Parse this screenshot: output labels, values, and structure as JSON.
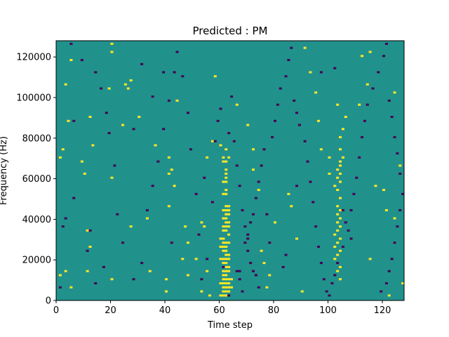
{
  "chart_data": {
    "type": "heatmap",
    "title": "Predicted : PM",
    "xlabel": "Time step",
    "ylabel": "Frequency (Hz)",
    "xlim": [
      0,
      128
    ],
    "ylim": [
      0,
      128000
    ],
    "n_time_steps": 128,
    "n_freq_bins": 128,
    "xticks": [
      0,
      20,
      40,
      60,
      80,
      100,
      120
    ],
    "xtick_labels": [
      "0",
      "20",
      "40",
      "60",
      "80",
      "100",
      "120"
    ],
    "yticks": [
      0,
      20000,
      40000,
      60000,
      80000,
      100000,
      120000
    ],
    "ytick_labels": [
      "0",
      "20000",
      "40000",
      "60000",
      "80000",
      "100000",
      "120000"
    ],
    "colormap": "viridis",
    "value_levels": [
      -1,
      0,
      1
    ],
    "background_value": 0,
    "colors": {
      "low": "#440154",
      "mid": "#21918c",
      "high": "#fde725"
    },
    "cells": [
      [
        60,
        2,
        1
      ],
      [
        61,
        2,
        1
      ],
      [
        62,
        2,
        1
      ],
      [
        61,
        4,
        1
      ],
      [
        62,
        4,
        1
      ],
      [
        63,
        4,
        1
      ],
      [
        61,
        6,
        1
      ],
      [
        62,
        6,
        1
      ],
      [
        63,
        6,
        1
      ],
      [
        64,
        6,
        1
      ],
      [
        60,
        8,
        1
      ],
      [
        61,
        8,
        1
      ],
      [
        62,
        8,
        1
      ],
      [
        63,
        8,
        1
      ],
      [
        61,
        10,
        1
      ],
      [
        62,
        10,
        1
      ],
      [
        63,
        10,
        1
      ],
      [
        64,
        10,
        1
      ],
      [
        61,
        12,
        1
      ],
      [
        62,
        12,
        1
      ],
      [
        61,
        14,
        1
      ],
      [
        62,
        14,
        1
      ],
      [
        63,
        14,
        1
      ],
      [
        62,
        16,
        1
      ],
      [
        63,
        16,
        1
      ],
      [
        61,
        18,
        1
      ],
      [
        62,
        18,
        1
      ],
      [
        60,
        20,
        1
      ],
      [
        61,
        20,
        1
      ],
      [
        62,
        20,
        1
      ],
      [
        63,
        20,
        1
      ],
      [
        62,
        22,
        1
      ],
      [
        63,
        22,
        1
      ],
      [
        61,
        24,
        1
      ],
      [
        62,
        24,
        1
      ],
      [
        60,
        26,
        1
      ],
      [
        61,
        26,
        1
      ],
      [
        62,
        26,
        1
      ],
      [
        61,
        28,
        1
      ],
      [
        62,
        28,
        1
      ],
      [
        63,
        28,
        1
      ],
      [
        60,
        30,
        1
      ],
      [
        61,
        30,
        1
      ],
      [
        63,
        32,
        1
      ],
      [
        61,
        34,
        1
      ],
      [
        62,
        34,
        1
      ],
      [
        61,
        36,
        1
      ],
      [
        62,
        36,
        1
      ],
      [
        63,
        36,
        1
      ],
      [
        62,
        38,
        1
      ],
      [
        63,
        38,
        1
      ],
      [
        61,
        40,
        1
      ],
      [
        62,
        40,
        1
      ],
      [
        62,
        42,
        1
      ],
      [
        63,
        42,
        1
      ],
      [
        61,
        44,
        1
      ],
      [
        62,
        44,
        1
      ],
      [
        63,
        44,
        1
      ],
      [
        62,
        46,
        1
      ],
      [
        63,
        46,
        1
      ],
      [
        61,
        52,
        1
      ],
      [
        62,
        52,
        1
      ],
      [
        62,
        54,
        1
      ],
      [
        61,
        58,
        1
      ],
      [
        62,
        58,
        1
      ],
      [
        62,
        60,
        1
      ],
      [
        62,
        62,
        1
      ],
      [
        62,
        64,
        1
      ],
      [
        61,
        68,
        1
      ],
      [
        62,
        68,
        1
      ],
      [
        61,
        70,
        1
      ],
      [
        63,
        70,
        1
      ],
      [
        62,
        74,
        1
      ],
      [
        104,
        10,
        1
      ],
      [
        103,
        14,
        1
      ],
      [
        104,
        16,
        1
      ],
      [
        102,
        20,
        1
      ],
      [
        103,
        22,
        1
      ],
      [
        104,
        24,
        1
      ],
      [
        102,
        26,
        1
      ],
      [
        103,
        28,
        1
      ],
      [
        104,
        30,
        1
      ],
      [
        102,
        32,
        1
      ],
      [
        103,
        34,
        1
      ],
      [
        104,
        36,
        1
      ],
      [
        103,
        38,
        1
      ],
      [
        104,
        40,
        1
      ],
      [
        103,
        42,
        1
      ],
      [
        104,
        44,
        1
      ],
      [
        103,
        46,
        1
      ],
      [
        104,
        50,
        1
      ],
      [
        103,
        54,
        1
      ],
      [
        102,
        56,
        1
      ],
      [
        104,
        58,
        1
      ],
      [
        103,
        60,
        1
      ],
      [
        104,
        62,
        1
      ],
      [
        103,
        64,
        1
      ],
      [
        104,
        66,
        1
      ],
      [
        104,
        68,
        1
      ],
      [
        105,
        70,
        1
      ],
      [
        104,
        74,
        1
      ],
      [
        104,
        80,
        1
      ],
      [
        105,
        84,
        1
      ],
      [
        1,
        12,
        1
      ],
      [
        5,
        6,
        1
      ],
      [
        3,
        14,
        1
      ],
      [
        1,
        70,
        1
      ],
      [
        2,
        74,
        1
      ],
      [
        4,
        88,
        1
      ],
      [
        3,
        106,
        1
      ],
      [
        5,
        118,
        1
      ],
      [
        10,
        62,
        1
      ],
      [
        11,
        34,
        1
      ],
      [
        12,
        26,
        1
      ],
      [
        11,
        14,
        1
      ],
      [
        13,
        76,
        1
      ],
      [
        12,
        90,
        1
      ],
      [
        19,
        104,
        1
      ],
      [
        20,
        122,
        1
      ],
      [
        20,
        126,
        1
      ],
      [
        20,
        10,
        1
      ],
      [
        20,
        60,
        1
      ],
      [
        24,
        86,
        1
      ],
      [
        25,
        106,
        1
      ],
      [
        27,
        108,
        1
      ],
      [
        26,
        104,
        1
      ],
      [
        27,
        36,
        1
      ],
      [
        30,
        90,
        1
      ],
      [
        33,
        40,
        1
      ],
      [
        34,
        14,
        1
      ],
      [
        40,
        4,
        1
      ],
      [
        40,
        10,
        1
      ],
      [
        41,
        46,
        1
      ],
      [
        41,
        62,
        1
      ],
      [
        42,
        64,
        1
      ],
      [
        44,
        98,
        1
      ],
      [
        46,
        20,
        1
      ],
      [
        47,
        36,
        1
      ],
      [
        48,
        28,
        1
      ],
      [
        48,
        12,
        1
      ],
      [
        53,
        4,
        1
      ],
      [
        53,
        38,
        1
      ],
      [
        54,
        36,
        1
      ],
      [
        55,
        14,
        1
      ],
      [
        56,
        2,
        1
      ],
      [
        55,
        70,
        1
      ],
      [
        57,
        78,
        1
      ],
      [
        58,
        110,
        1
      ],
      [
        60,
        76,
        1
      ],
      [
        66,
        96,
        1
      ],
      [
        70,
        86,
        1
      ],
      [
        72,
        74,
        1
      ],
      [
        72,
        64,
        1
      ],
      [
        74,
        54,
        1
      ],
      [
        75,
        24,
        1
      ],
      [
        76,
        18,
        1
      ],
      [
        78,
        12,
        1
      ],
      [
        77,
        6,
        1
      ],
      [
        80,
        38,
        1
      ],
      [
        85,
        52,
        1
      ],
      [
        86,
        46,
        1
      ],
      [
        88,
        30,
        1
      ],
      [
        90,
        4,
        1
      ],
      [
        91,
        124,
        1
      ],
      [
        93,
        112,
        1
      ],
      [
        95,
        102,
        1
      ],
      [
        96,
        88,
        1
      ],
      [
        100,
        62,
        1
      ],
      [
        103,
        96,
        1
      ],
      [
        106,
        90,
        1
      ],
      [
        111,
        96,
        1
      ],
      [
        112,
        120,
        1
      ],
      [
        114,
        106,
        1
      ],
      [
        115,
        122,
        1
      ],
      [
        115,
        20,
        1
      ],
      [
        117,
        56,
        1
      ],
      [
        120,
        54,
        1
      ],
      [
        121,
        44,
        1
      ],
      [
        122,
        2,
        1
      ],
      [
        124,
        40,
        1
      ],
      [
        126,
        66,
        1
      ],
      [
        127,
        8,
        1
      ],
      [
        124,
        102,
        1
      ],
      [
        41,
        70,
        1
      ],
      [
        100,
        70,
        1
      ],
      [
        97,
        74,
        1
      ],
      [
        51,
        20,
        1
      ],
      [
        36,
        76,
        1
      ],
      [
        43,
        56,
        1
      ],
      [
        9,
        68,
        1
      ],
      [
        1,
        6,
        -1
      ],
      [
        3,
        40,
        -1
      ],
      [
        6,
        50,
        -1
      ],
      [
        2,
        36,
        -1
      ],
      [
        5,
        126,
        -1
      ],
      [
        9,
        118,
        -1
      ],
      [
        14,
        112,
        -1
      ],
      [
        16,
        104,
        -1
      ],
      [
        18,
        92,
        -1
      ],
      [
        19,
        82,
        -1
      ],
      [
        21,
        66,
        -1
      ],
      [
        22,
        42,
        -1
      ],
      [
        24,
        28,
        -1
      ],
      [
        28,
        10,
        -1
      ],
      [
        31,
        18,
        -1
      ],
      [
        33,
        44,
        -1
      ],
      [
        35,
        56,
        -1
      ],
      [
        37,
        68,
        -1
      ],
      [
        39,
        84,
        -1
      ],
      [
        41,
        98,
        -1
      ],
      [
        43,
        112,
        -1
      ],
      [
        44,
        122,
        -1
      ],
      [
        46,
        110,
        -1
      ],
      [
        49,
        74,
        -1
      ],
      [
        51,
        52,
        -1
      ],
      [
        52,
        32,
        -1
      ],
      [
        53,
        10,
        -1
      ],
      [
        55,
        20,
        -1
      ],
      [
        57,
        48,
        -1
      ],
      [
        59,
        88,
        -1
      ],
      [
        60,
        94,
        -1
      ],
      [
        63,
        82,
        -1
      ],
      [
        65,
        78,
        -1
      ],
      [
        66,
        66,
        -1
      ],
      [
        67,
        56,
        -1
      ],
      [
        68,
        44,
        -1
      ],
      [
        69,
        36,
        -1
      ],
      [
        70,
        30,
        -1
      ],
      [
        70,
        24,
        -1
      ],
      [
        71,
        18,
        -1
      ],
      [
        72,
        14,
        -1
      ],
      [
        73,
        12,
        -1
      ],
      [
        74,
        6,
        -1
      ],
      [
        66,
        14,
        -1
      ],
      [
        67,
        14,
        -1
      ],
      [
        67,
        10,
        -1
      ],
      [
        68,
        4,
        -1
      ],
      [
        69,
        28,
        -1
      ],
      [
        70,
        32,
        -1
      ],
      [
        71,
        38,
        -1
      ],
      [
        72,
        42,
        -1
      ],
      [
        73,
        50,
        -1
      ],
      [
        74,
        58,
        -1
      ],
      [
        75,
        66,
        -1
      ],
      [
        76,
        74,
        -1
      ],
      [
        79,
        80,
        -1
      ],
      [
        80,
        88,
        -1
      ],
      [
        81,
        96,
        -1
      ],
      [
        82,
        104,
        -1
      ],
      [
        84,
        110,
        -1
      ],
      [
        85,
        118,
        -1
      ],
      [
        86,
        124,
        -1
      ],
      [
        87,
        98,
        -1
      ],
      [
        88,
        92,
        -1
      ],
      [
        89,
        86,
        -1
      ],
      [
        91,
        78,
        -1
      ],
      [
        92,
        68,
        -1
      ],
      [
        93,
        58,
        -1
      ],
      [
        94,
        48,
        -1
      ],
      [
        95,
        36,
        -1
      ],
      [
        96,
        26,
        -1
      ],
      [
        97,
        18,
        -1
      ],
      [
        98,
        10,
        -1
      ],
      [
        99,
        4,
        -1
      ],
      [
        100,
        2,
        -1
      ],
      [
        101,
        8,
        -1
      ],
      [
        102,
        12,
        -1
      ],
      [
        103,
        18,
        -1
      ],
      [
        105,
        26,
        -1
      ],
      [
        107,
        34,
        -1
      ],
      [
        108,
        44,
        -1
      ],
      [
        109,
        52,
        -1
      ],
      [
        110,
        60,
        -1
      ],
      [
        111,
        70,
        -1
      ],
      [
        112,
        80,
        -1
      ],
      [
        113,
        88,
        -1
      ],
      [
        114,
        96,
        -1
      ],
      [
        116,
        104,
        -1
      ],
      [
        118,
        112,
        -1
      ],
      [
        120,
        120,
        -1
      ],
      [
        121,
        126,
        -1
      ],
      [
        122,
        98,
        -1
      ],
      [
        123,
        90,
        -1
      ],
      [
        124,
        80,
        -1
      ],
      [
        125,
        72,
        -1
      ],
      [
        126,
        62,
        -1
      ],
      [
        127,
        52,
        -1
      ],
      [
        126,
        44,
        -1
      ],
      [
        125,
        36,
        -1
      ],
      [
        124,
        28,
        -1
      ],
      [
        123,
        20,
        -1
      ],
      [
        122,
        14,
        -1
      ],
      [
        121,
        8,
        -1
      ],
      [
        119,
        4,
        -1
      ],
      [
        83,
        16,
        -1
      ],
      [
        84,
        22,
        -1
      ],
      [
        78,
        28,
        -1
      ],
      [
        77,
        42,
        -1
      ],
      [
        88,
        56,
        -1
      ],
      [
        42,
        28,
        -1
      ],
      [
        35,
        100,
        -1
      ],
      [
        28,
        84,
        -1
      ],
      [
        12,
        34,
        -1
      ],
      [
        6,
        88,
        -1
      ],
      [
        31,
        116,
        -1
      ],
      [
        48,
        92,
        -1
      ],
      [
        64,
        100,
        -1
      ],
      [
        97,
        112,
        -1
      ],
      [
        102,
        114,
        -1
      ],
      [
        11,
        24,
        -1
      ],
      [
        17,
        16,
        -1
      ],
      [
        14,
        8,
        -1
      ],
      [
        39,
        112,
        -1
      ],
      [
        54,
        60,
        -1
      ],
      [
        58,
        78,
        -1
      ],
      [
        105,
        44,
        -1
      ],
      [
        106,
        38,
        -1
      ],
      [
        108,
        30,
        -1
      ],
      [
        61,
        16,
        -1
      ],
      [
        63,
        2,
        -1
      ]
    ]
  }
}
